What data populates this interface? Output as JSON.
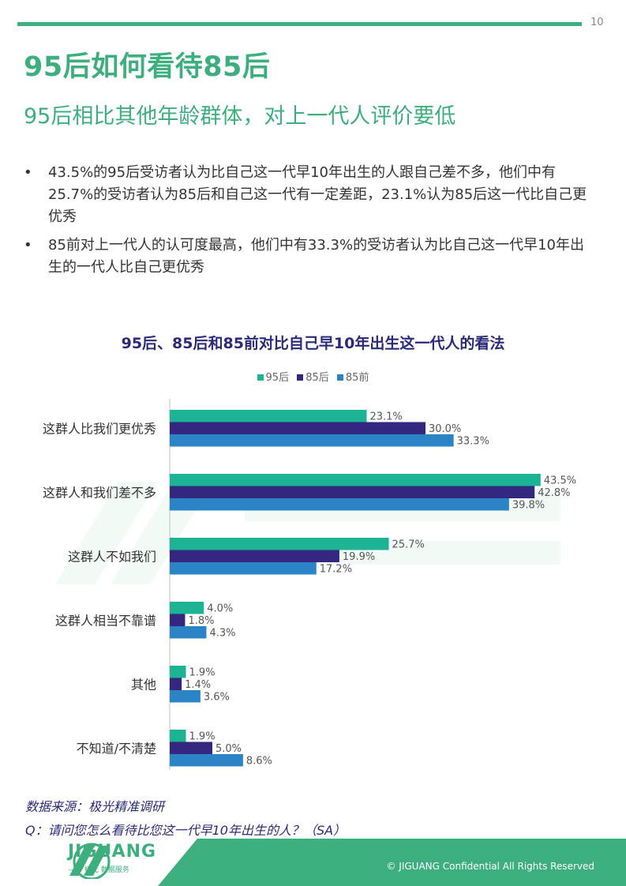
{
  "page": {
    "page_number": "10",
    "title": "95后如何看待85后",
    "subtitle": "95后相比其他年龄群体，对上一代人评价要低",
    "bullets": [
      "43.5%的95后受访者认为比自己这一代早10年出生的人跟自己差不多，他们中有25.7%的受访者认为85后和自己这一代有一定差距，23.1%认为85后这一代比自己更优秀",
      "85前对上一代人的认可度最高，他们中有33.3%的受访者认为比自己这一代早10年出生的一代人比自己更优秀"
    ],
    "bullet_symbol": "•",
    "source": "数据来源：极光精准调研",
    "question": "Q：请问您怎么看待比您这一代早10年出生的人？（SA）",
    "footer": {
      "logo_text": "JIGUANG",
      "logo_tagline": "—— 极光 数据服务",
      "copyright": "© JIGUANG  Confidential  All Rights Reserved"
    }
  },
  "colors": {
    "brand_green": "#3daf7e",
    "title_navy": "#2b2a78",
    "series_95": "#1bb394",
    "series_85": "#33277f",
    "series_pre85": "#2a84c6"
  },
  "chart_data": {
    "type": "bar",
    "orientation": "horizontal",
    "title": "95后、85后和85前对比自己早10年出生这一代人的看法",
    "categories": [
      "这群人比我们更优秀",
      "这群人和我们差不多",
      "这群人不如我们",
      "这群人相当不靠谱",
      "其他",
      "不知道/不清楚"
    ],
    "series": [
      {
        "name": "95后",
        "color": "#1bb394",
        "values": [
          23.1,
          43.5,
          25.7,
          4.0,
          1.9,
          1.9
        ]
      },
      {
        "name": "85后",
        "color": "#33277f",
        "values": [
          30.0,
          42.8,
          19.9,
          1.8,
          1.4,
          5.0
        ]
      },
      {
        "name": "85前",
        "color": "#2a84c6",
        "values": [
          33.3,
          39.8,
          17.2,
          4.3,
          3.6,
          8.6
        ]
      }
    ],
    "value_suffix": "%",
    "legend": "top-center",
    "grid": false,
    "xlim": [
      0,
      45
    ]
  }
}
